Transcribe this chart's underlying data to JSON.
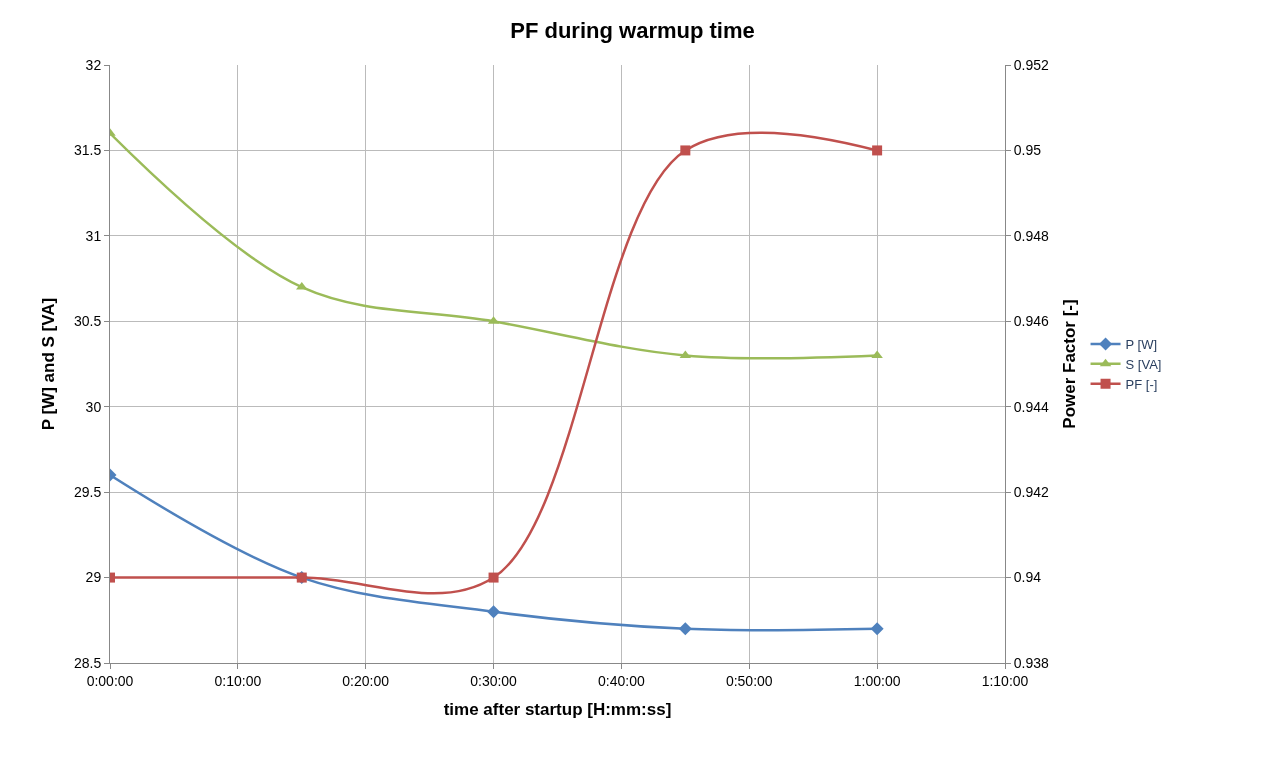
{
  "chart_data": {
    "type": "line",
    "title": "PF during warmup time",
    "xlabel": "time after startup [H:mm:ss]",
    "ylabel": "P [W] and S [VA]",
    "y2label": "Power Factor [-]",
    "x": [
      0,
      0.25,
      0.5,
      0.75,
      1.0
    ],
    "series": [
      {
        "name": "P [W]",
        "color": "#4f81bd",
        "marker": "diamond",
        "values": [
          29.6,
          29.0,
          28.8,
          28.7,
          28.7
        ]
      },
      {
        "name": "S [VA]",
        "color": "#9bbb59",
        "marker": "triangle",
        "values": [
          31.6,
          30.7,
          30.5,
          30.3,
          30.3
        ]
      },
      {
        "name": "PF [-]",
        "color": "#c0504d",
        "marker": "square",
        "axis": "y2",
        "values": [
          0.94,
          0.94,
          0.94,
          0.95,
          0.95
        ]
      }
    ],
    "xlim": [
      0,
      1.1667
    ],
    "xticks": [
      {
        "value": 0,
        "label": "0:00:00"
      },
      {
        "value": 0.1667,
        "label": "0:10:00"
      },
      {
        "value": 0.3333,
        "label": "0:20:00"
      },
      {
        "value": 0.5,
        "label": "0:30:00"
      },
      {
        "value": 0.6667,
        "label": "0:40:00"
      },
      {
        "value": 0.8333,
        "label": "0:50:00"
      },
      {
        "value": 1.0,
        "label": "1:00:00"
      },
      {
        "value": 1.1667,
        "label": "1:10:00"
      }
    ],
    "ylim": [
      28.5,
      32
    ],
    "yticks": [
      28.5,
      29,
      29.5,
      30,
      30.5,
      31,
      31.5,
      32
    ],
    "y2lim": [
      0.938,
      0.952
    ],
    "y2ticks": [
      0.938,
      0.94,
      0.942,
      0.944,
      0.946,
      0.948,
      0.95,
      0.952
    ],
    "grid": true,
    "legend": "right"
  }
}
